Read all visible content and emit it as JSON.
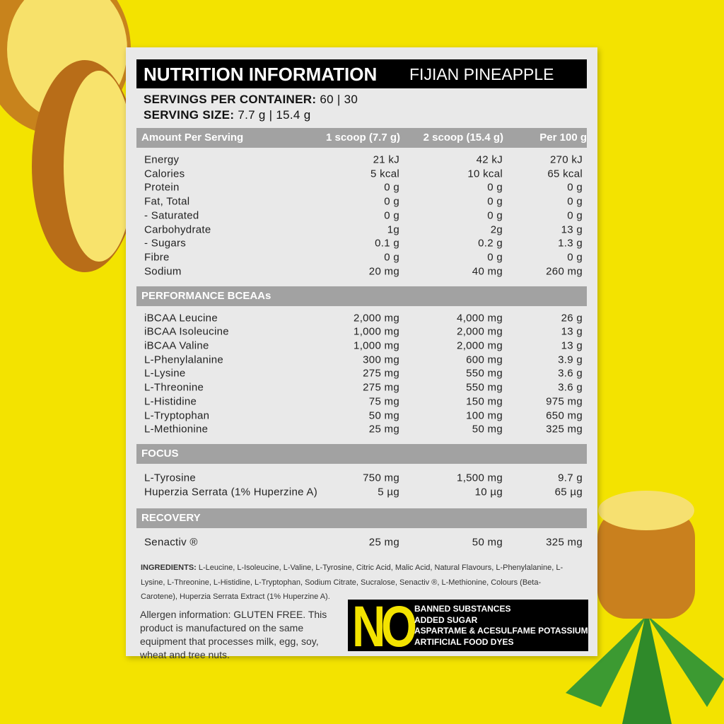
{
  "header": {
    "title": "NUTRITION INFORMATION",
    "flavor": "FIJIAN PINEAPPLE"
  },
  "servings": [
    {
      "label": "SERVINGS PER CONTAINER:",
      "value": "60 | 30"
    },
    {
      "label": "SERVING SIZE:",
      "value": "7.7 g | 15.4 g"
    }
  ],
  "table": {
    "columns": [
      "Amount Per Serving",
      "1 scoop (7.7 g)",
      "2 scoop (15.4 g)",
      "Per 100 g"
    ],
    "sections": [
      {
        "rows": [
          [
            "Energy",
            "21 kJ",
            "42 kJ",
            "270 kJ"
          ],
          [
            "Calories",
            "5 kcal",
            "10 kcal",
            "65 kcal"
          ],
          [
            "Protein",
            "0 g",
            "0 g",
            "0 g"
          ],
          [
            "Fat, Total",
            "0 g",
            "0 g",
            "0 g"
          ],
          [
            "- Saturated",
            "0 g",
            "0 g",
            "0 g"
          ],
          [
            "Carbohydrate",
            "1g",
            "2g",
            "13 g"
          ],
          [
            "- Sugars",
            "0.1 g",
            "0.2 g",
            "1.3 g"
          ],
          [
            "Fibre",
            "0 g",
            "0 g",
            "0 g"
          ],
          [
            "Sodium",
            "20 mg",
            "40 mg",
            "260 mg"
          ]
        ]
      },
      {
        "heading": "PERFORMANCE BCEAAs",
        "rows": [
          [
            "iBCAA Leucine",
            "2,000 mg",
            "4,000 mg",
            "26 g"
          ],
          [
            "iBCAA Isoleucine",
            "1,000 mg",
            "2,000 mg",
            "13 g"
          ],
          [
            "iBCAA Valine",
            "1,000 mg",
            "2,000 mg",
            "13 g"
          ],
          [
            "L-Phenylalanine",
            "300 mg",
            "600 mg",
            "3.9 g"
          ],
          [
            "L-Lysine",
            "275 mg",
            "550 mg",
            "3.6 g"
          ],
          [
            "L-Threonine",
            "275 mg",
            "550 mg",
            "3.6 g"
          ],
          [
            "L-Histidine",
            "75 mg",
            "150 mg",
            "975 mg"
          ],
          [
            "L-Tryptophan",
            "50 mg",
            "100 mg",
            "650 mg"
          ],
          [
            "L-Methionine",
            "25 mg",
            "50 mg",
            "325 mg"
          ]
        ]
      },
      {
        "heading": "FOCUS",
        "rows": [
          [
            "L-Tyrosine",
            "750 mg",
            "1,500 mg",
            "9.7 g"
          ],
          [
            "Huperzia Serrata (1% Huperzine A)",
            "5 µg",
            "10 µg",
            "65 µg"
          ]
        ]
      },
      {
        "heading": "RECOVERY",
        "rows": [
          [
            "Senactiv ®",
            "25 mg",
            "50 mg",
            "325 mg"
          ]
        ]
      }
    ]
  },
  "ingredients": {
    "label": "INGREDIENTS:",
    "text": "L-Leucine, L-Isoleucine, L-Valine, L-Tyrosine, Citric Acid, Malic Acid, Natural Flavours, L-Phenylalanine, L-Lysine, L-Threonine, L-Histidine, L-Tryptophan, Sodium Citrate, Sucralose, Senactiv ®, L-Methionine, Colours (Beta-Carotene), Huperzia Serrata Extract (1% Huperzine A)."
  },
  "allergen": "Allergen information: GLUTEN FREE. This product is manufactured on the same equipment that processes milk, egg, soy, wheat and tree nuts.",
  "no_badge": {
    "word": "NO",
    "items": [
      "BANNED SUBSTANCES",
      "ADDED SUGAR",
      "ASPARTAME & ACESULFAME POTASSIUM",
      "ARTIFICIAL FOOD DYES"
    ]
  }
}
